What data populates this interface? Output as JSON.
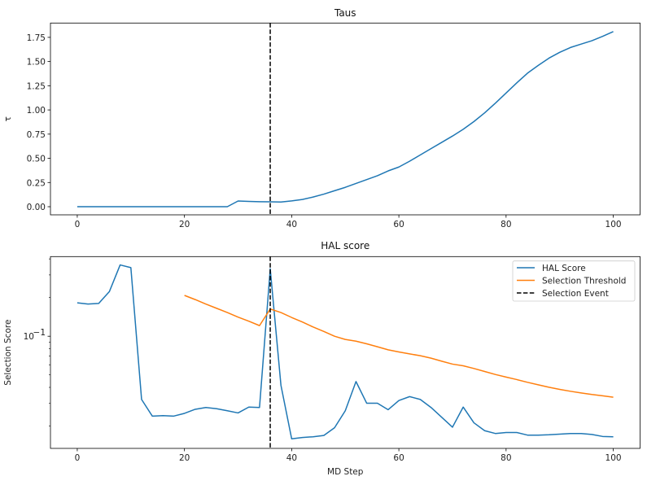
{
  "chart_data": [
    {
      "type": "line",
      "title": "Taus",
      "xlabel": "",
      "ylabel": "τ",
      "xlim": [
        -5,
        105
      ],
      "ylim": [
        -0.084,
        1.898
      ],
      "yscale": "linear",
      "grid": false,
      "xticks": [
        0,
        20,
        40,
        60,
        80,
        100
      ],
      "xtick_labels": [
        "0",
        "20",
        "40",
        "60",
        "80",
        "100"
      ],
      "yticks": [
        0,
        0.25,
        0.5,
        0.75,
        1.0,
        1.25,
        1.5,
        1.75
      ],
      "ytick_labels": [
        "0.00",
        "0.25",
        "0.50",
        "0.75",
        "1.00",
        "1.25",
        "1.50",
        "1.75"
      ],
      "series": [
        {
          "color": "#1f77b4",
          "x": [
            0,
            2,
            4,
            6,
            8,
            10,
            12,
            14,
            16,
            18,
            20,
            22,
            24,
            26,
            28,
            30,
            32,
            34,
            36,
            38,
            40,
            42,
            44,
            46,
            48,
            50,
            52,
            54,
            56,
            58,
            60,
            62,
            64,
            66,
            68,
            70,
            72,
            74,
            76,
            78,
            80,
            82,
            84,
            86,
            88,
            90,
            92,
            94,
            96,
            98,
            100
          ],
          "y": [
            0,
            0,
            0,
            0,
            0,
            0,
            0,
            0,
            0,
            0,
            0,
            0,
            0,
            0,
            0,
            0.059,
            0.055,
            0.052,
            0.05,
            0.048,
            0.06,
            0.075,
            0.1,
            0.13,
            0.165,
            0.2,
            0.24,
            0.28,
            0.32,
            0.37,
            0.41,
            0.47,
            0.535,
            0.6,
            0.665,
            0.73,
            0.8,
            0.88,
            0.97,
            1.07,
            1.175,
            1.28,
            1.38,
            1.46,
            1.535,
            1.595,
            1.645,
            1.68,
            1.715,
            1.76,
            1.81
          ]
        }
      ],
      "vlines": [
        {
          "x": 36,
          "color": "#000000",
          "style": "dashed"
        }
      ]
    },
    {
      "type": "line",
      "title": "HAL score",
      "xlabel": "MD Step",
      "ylabel": "Selection Score",
      "xlim": [
        -5,
        105
      ],
      "ylim": [
        0.0134,
        0.417
      ],
      "yscale": "log",
      "grid": false,
      "xticks": [
        0,
        20,
        40,
        60,
        80,
        100
      ],
      "xtick_labels": [
        "0",
        "20",
        "40",
        "60",
        "80",
        "100"
      ],
      "yticks": [
        0.1
      ],
      "ytick_labels": [
        "10",
        "−1"
      ],
      "yminor_ticks": [
        0.02,
        0.03,
        0.04,
        0.05,
        0.06,
        0.07,
        0.08,
        0.09,
        0.2,
        0.3,
        0.4
      ],
      "legend_position": "top-right",
      "series": [
        {
          "name": "HAL Score",
          "color": "#1f77b4",
          "x": [
            0,
            2,
            4,
            6,
            8,
            10,
            12,
            14,
            16,
            18,
            20,
            22,
            24,
            26,
            28,
            30,
            32,
            34,
            36,
            38,
            40,
            42,
            44,
            46,
            48,
            50,
            52,
            54,
            56,
            58,
            60,
            62,
            64,
            66,
            68,
            70,
            72,
            74,
            76,
            78,
            80,
            82,
            84,
            86,
            88,
            90,
            92,
            94,
            96,
            98,
            100
          ],
          "y": [
            0.182,
            0.178,
            0.18,
            0.223,
            0.359,
            0.342,
            0.0322,
            0.0239,
            0.0241,
            0.0239,
            0.0251,
            0.027,
            0.0279,
            0.0273,
            0.0263,
            0.0253,
            0.0281,
            0.0279,
            0.335,
            0.0415,
            0.0159,
            0.0163,
            0.0165,
            0.0169,
            0.0194,
            0.0263,
            0.0444,
            0.0301,
            0.0301,
            0.0268,
            0.0316,
            0.0339,
            0.0322,
            0.0279,
            0.0234,
            0.0196,
            0.0281,
            0.0212,
            0.0184,
            0.0175,
            0.0178,
            0.0178,
            0.017,
            0.017,
            0.0171,
            0.0173,
            0.0175,
            0.0175,
            0.0172,
            0.0166,
            0.0165
          ]
        },
        {
          "name": "Selection Threshold",
          "color": "#ff7f0e",
          "x": [
            20,
            22,
            24,
            26,
            28,
            30,
            32,
            34,
            36,
            38,
            40,
            42,
            44,
            46,
            48,
            50,
            52,
            54,
            56,
            58,
            60,
            62,
            64,
            66,
            68,
            70,
            72,
            74,
            76,
            78,
            80,
            82,
            84,
            86,
            88,
            90,
            92,
            94,
            96,
            98,
            100
          ],
          "y": [
            0.208,
            0.193,
            0.178,
            0.165,
            0.153,
            0.141,
            0.131,
            0.121,
            0.163,
            0.153,
            0.14,
            0.129,
            0.118,
            0.109,
            0.1,
            0.0944,
            0.0916,
            0.0873,
            0.0828,
            0.0784,
            0.0755,
            0.0729,
            0.0705,
            0.0675,
            0.0639,
            0.0607,
            0.0589,
            0.0561,
            0.0532,
            0.0504,
            0.0481,
            0.046,
            0.0438,
            0.0419,
            0.0401,
            0.0386,
            0.0373,
            0.0362,
            0.0352,
            0.0344,
            0.0335
          ]
        }
      ],
      "vlines": [
        {
          "name": "Selection Event",
          "x": 36,
          "color": "#000000",
          "style": "dashed"
        }
      ]
    }
  ]
}
